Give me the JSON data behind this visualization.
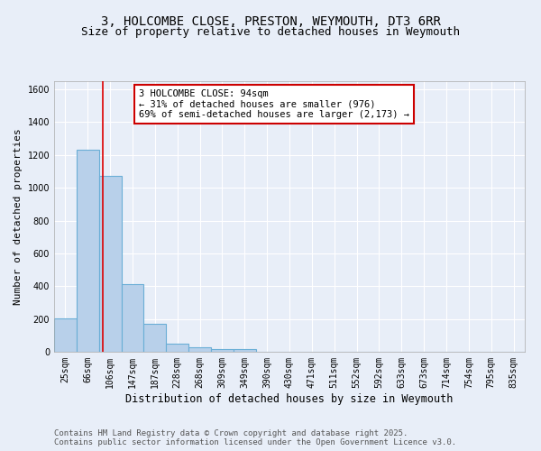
{
  "title": "3, HOLCOMBE CLOSE, PRESTON, WEYMOUTH, DT3 6RR",
  "subtitle": "Size of property relative to detached houses in Weymouth",
  "xlabel": "Distribution of detached houses by size in Weymouth",
  "ylabel": "Number of detached properties",
  "categories": [
    "25sqm",
    "66sqm",
    "106sqm",
    "147sqm",
    "187sqm",
    "228sqm",
    "268sqm",
    "309sqm",
    "349sqm",
    "390sqm",
    "430sqm",
    "471sqm",
    "511sqm",
    "552sqm",
    "592sqm",
    "633sqm",
    "673sqm",
    "714sqm",
    "754sqm",
    "795sqm",
    "835sqm"
  ],
  "values": [
    203,
    1232,
    1073,
    415,
    170,
    47,
    25,
    16,
    15,
    0,
    0,
    0,
    0,
    0,
    0,
    0,
    0,
    0,
    0,
    0,
    0
  ],
  "bar_color": "#b8d0ea",
  "bar_edgecolor": "#6aaed6",
  "bar_linewidth": 0.8,
  "vline_x": 1.68,
  "vline_color": "#dd0000",
  "annotation_text": "3 HOLCOMBE CLOSE: 94sqm\n← 31% of detached houses are smaller (976)\n69% of semi-detached houses are larger (2,173) →",
  "annotation_box_color": "#ffffff",
  "annotation_edge_color": "#cc0000",
  "ylim": [
    0,
    1650
  ],
  "yticks": [
    0,
    200,
    400,
    600,
    800,
    1000,
    1200,
    1400,
    1600
  ],
  "bg_color": "#e8eef8",
  "grid_color": "#ffffff",
  "footnote": "Contains HM Land Registry data © Crown copyright and database right 2025.\nContains public sector information licensed under the Open Government Licence v3.0.",
  "title_fontsize": 10,
  "subtitle_fontsize": 9,
  "xlabel_fontsize": 8.5,
  "ylabel_fontsize": 8,
  "tick_fontsize": 7,
  "annotation_fontsize": 7.5,
  "footnote_fontsize": 6.5
}
